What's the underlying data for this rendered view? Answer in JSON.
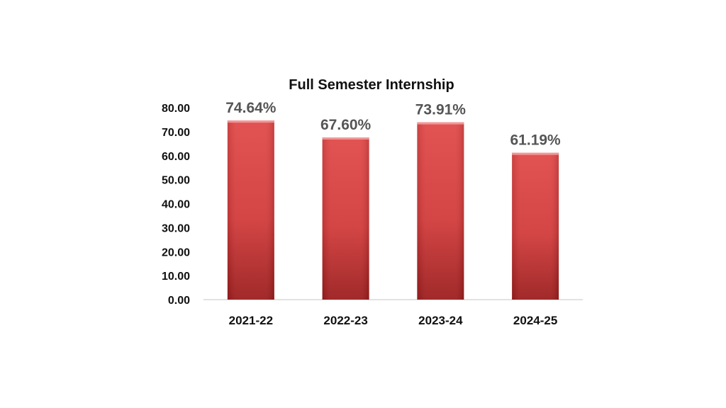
{
  "chart_data": {
    "type": "bar",
    "title": "Full Semester Internship",
    "xlabel": "",
    "ylabel": "",
    "categories": [
      "2021-22",
      "2022-23",
      "2023-24",
      "2024-25"
    ],
    "values": [
      74.64,
      67.6,
      73.91,
      61.19
    ],
    "data_labels": [
      "74.64%",
      "67.60%",
      "73.91%",
      "61.19%"
    ],
    "ylim": [
      0,
      80
    ],
    "yticks": [
      0,
      10,
      20,
      30,
      40,
      50,
      60,
      70,
      80
    ],
    "ytick_labels": [
      "0.00",
      "10.00",
      "20.00",
      "30.00",
      "40.00",
      "50.00",
      "60.00",
      "70.00",
      "80.00"
    ],
    "grid": false,
    "legend": "none",
    "colors": {
      "bar_top": "#e04848",
      "bar_bottom": "#9b1c1c",
      "bar_edge": "#f3a3a3",
      "axis": "#d9d9d9",
      "data_label": "#555555"
    }
  }
}
